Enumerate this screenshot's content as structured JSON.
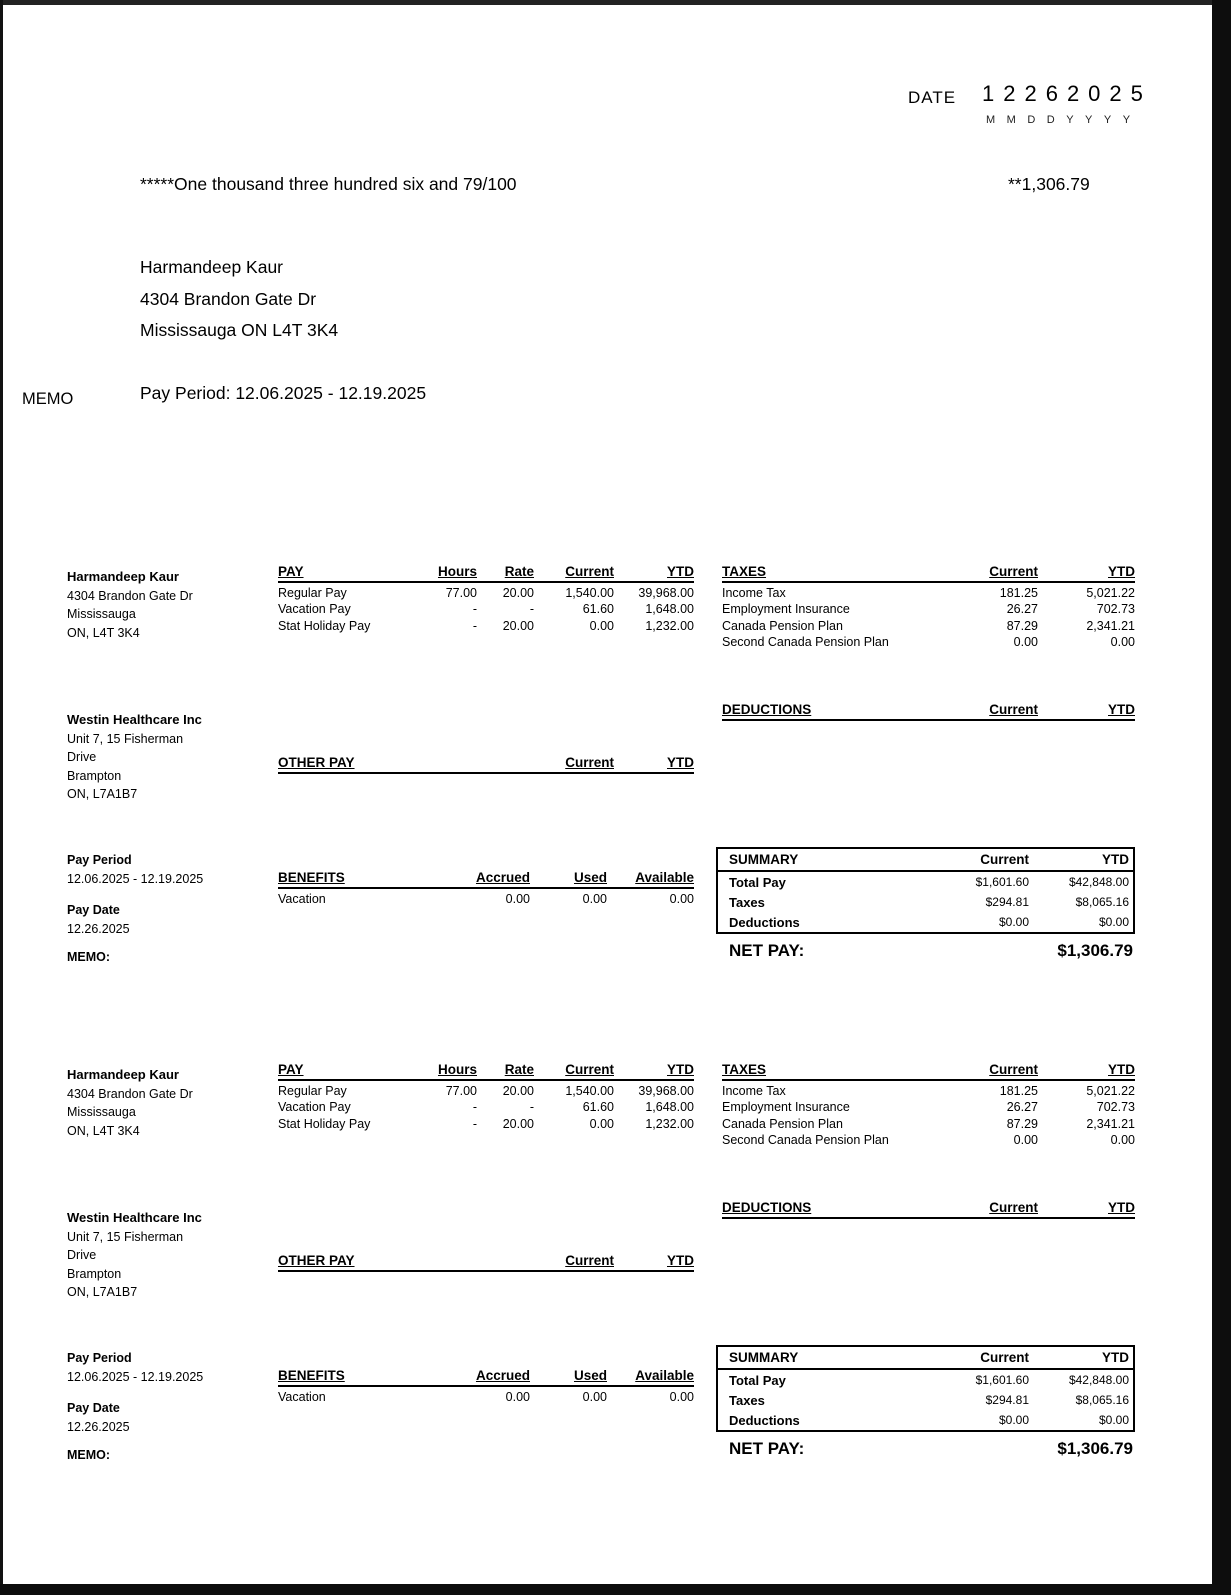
{
  "check": {
    "date_label": "DATE",
    "date_value": "12262025",
    "date_format": "MMDDYYYY",
    "amount_words": "*****One thousand three hundred six and 79/100",
    "amount_numeric": "**1,306.79",
    "payee": {
      "name": "Harmandeep Kaur",
      "address_line1": "4304 Brandon Gate Dr",
      "address_line2": "Mississauga ON L4T 3K4"
    },
    "memo_label": "MEMO",
    "memo_text": "Pay Period:  12.06.2025 - 12.19.2025"
  },
  "stub": {
    "employee": {
      "name": "Harmandeep Kaur",
      "line1": "4304 Brandon Gate Dr",
      "line2": "Mississauga",
      "line3": "ON, L4T 3K4"
    },
    "employer": {
      "name": "Westin Healthcare Inc",
      "line1": "Unit 7, 15 Fisherman",
      "line2": "Drive",
      "line3": "Brampton",
      "line4": "ON, L7A1B7"
    },
    "pay_period": {
      "label": "Pay Period",
      "value": "12.06.2025 - 12.19.2025"
    },
    "pay_date": {
      "label": "Pay Date",
      "value": "12.26.2025"
    },
    "memo_label": "MEMO:",
    "pay_table": {
      "title": "PAY",
      "headers": [
        "Hours",
        "Rate",
        "Current",
        "YTD"
      ],
      "rows": [
        {
          "label": "Regular Pay",
          "hours": "77.00",
          "rate": "20.00",
          "current": "1,540.00",
          "ytd": "39,968.00"
        },
        {
          "label": "Vacation Pay",
          "hours": "-",
          "rate": "-",
          "current": "61.60",
          "ytd": "1,648.00"
        },
        {
          "label": "Stat Holiday Pay",
          "hours": "-",
          "rate": "20.00",
          "current": "0.00",
          "ytd": "1,232.00"
        }
      ]
    },
    "taxes_table": {
      "title": "TAXES",
      "headers": [
        "Current",
        "YTD"
      ],
      "rows": [
        {
          "label": "Income Tax",
          "current": "181.25",
          "ytd": "5,021.22"
        },
        {
          "label": "Employment Insurance",
          "current": "26.27",
          "ytd": "702.73"
        },
        {
          "label": "Canada Pension Plan",
          "current": "87.29",
          "ytd": "2,341.21"
        },
        {
          "label": "Second Canada Pension Plan",
          "current": "0.00",
          "ytd": "0.00"
        }
      ]
    },
    "deductions_table": {
      "title": "DEDUCTIONS",
      "headers": [
        "Current",
        "YTD"
      ]
    },
    "other_pay_table": {
      "title": "OTHER PAY",
      "headers": [
        "Current",
        "YTD"
      ]
    },
    "benefits_table": {
      "title": "BENEFITS",
      "headers": [
        "Accrued",
        "Used",
        "Available"
      ],
      "rows": [
        {
          "label": "Vacation",
          "accrued": "0.00",
          "used": "0.00",
          "available": "0.00"
        }
      ]
    },
    "summary": {
      "title": "SUMMARY",
      "headers": [
        "Current",
        "YTD"
      ],
      "rows": [
        {
          "label": "Total Pay",
          "current": "$1,601.60",
          "ytd": "$42,848.00"
        },
        {
          "label": "Taxes",
          "current": "$294.81",
          "ytd": "$8,065.16"
        },
        {
          "label": "Deductions",
          "current": "$0.00",
          "ytd": "$0.00"
        }
      ],
      "net_pay_label": "NET PAY:",
      "net_pay_value": "$1,306.79"
    }
  }
}
